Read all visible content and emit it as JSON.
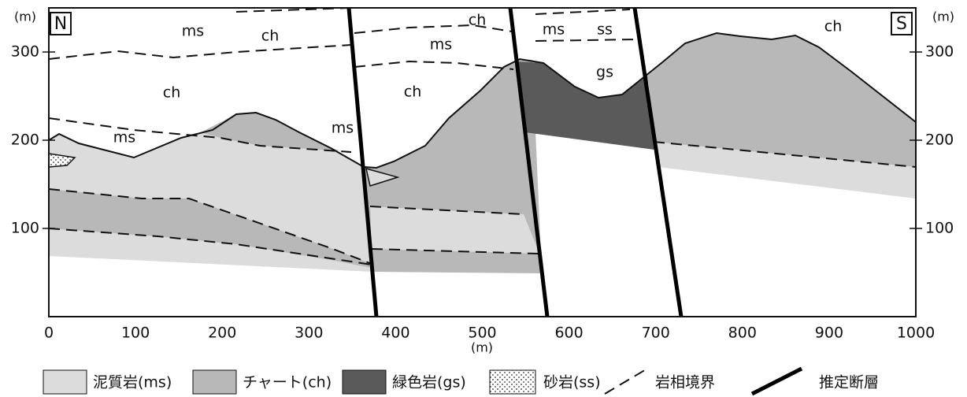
{
  "direction_labels": {
    "north": "N",
    "south": "S"
  },
  "axes": {
    "x_unit": "(m)",
    "x_ticks": [
      "0",
      "100",
      "200",
      "300",
      "400",
      "500",
      "600",
      "700",
      "800",
      "900",
      "1000"
    ],
    "y_unit_left": "(m)",
    "y_ticks_left": [
      "100",
      "200",
      "300"
    ],
    "y_unit_right": "(m)",
    "y_ticks_right": [
      "100",
      "200",
      "300"
    ]
  },
  "rock_labels": [
    "ms",
    "ch",
    "ch",
    "ms",
    "ms",
    "ch",
    "ch",
    "ms",
    "ms",
    "ss",
    "gs",
    "ch"
  ],
  "legend": [
    {
      "label": "泥質岩(ms)"
    },
    {
      "label": "チャート(ch)"
    },
    {
      "label": "緑色岩(gs)"
    },
    {
      "label": "砂岩(ss)"
    },
    {
      "label": "岩相境界"
    },
    {
      "label": "推定断層"
    }
  ]
}
